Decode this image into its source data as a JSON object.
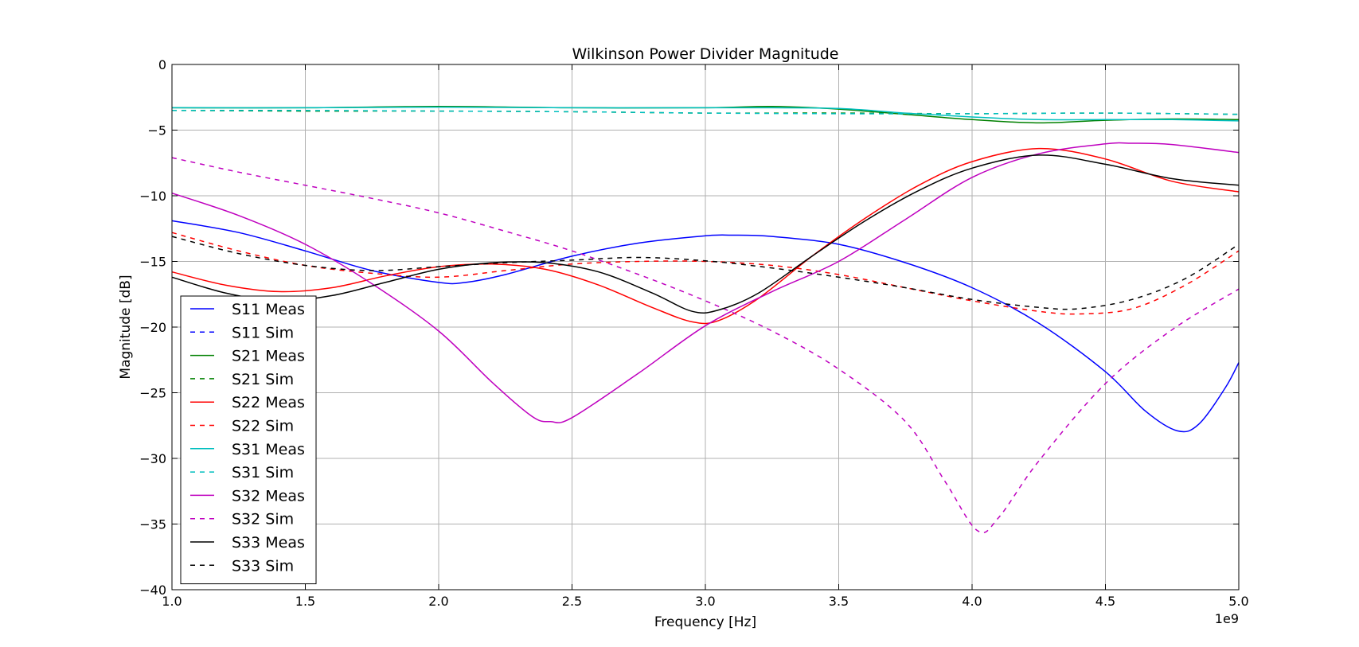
{
  "chart_data": {
    "type": "line",
    "title": "Wilkinson Power Divider Magnitude",
    "xlabel": "Frequency [Hz]",
    "ylabel": "Magnitude [dB]",
    "x_multiplier_label": "1e9",
    "xlim": [
      1.0,
      5.0
    ],
    "ylim": [
      -40,
      0
    ],
    "x_ticks": [
      1.0,
      1.5,
      2.0,
      2.5,
      3.0,
      3.5,
      4.0,
      4.5,
      5.0
    ],
    "x_tick_labels": [
      "1.0",
      "1.5",
      "2.0",
      "2.5",
      "3.0",
      "3.5",
      "4.0",
      "4.5",
      "5.0"
    ],
    "y_ticks": [
      0,
      -5,
      -10,
      -15,
      -20,
      -25,
      -30,
      -35,
      -40
    ],
    "y_tick_labels": [
      "0",
      "−5",
      "−10",
      "−15",
      "−20",
      "−25",
      "−30",
      "−35",
      "−40"
    ],
    "grid": true,
    "legend_position": "lower-left",
    "x_units_note": "x values are in units of 1e9 Hz (GHz), as shown by the axis offset label",
    "series": [
      {
        "name": "S11 Meas",
        "color": "#0000ff",
        "style": "solid",
        "points": [
          [
            1.0,
            -11.9
          ],
          [
            1.25,
            -12.8
          ],
          [
            1.5,
            -14.2
          ],
          [
            1.75,
            -15.7
          ],
          [
            2.0,
            -16.6
          ],
          [
            2.1,
            -16.6
          ],
          [
            2.25,
            -16.0
          ],
          [
            2.5,
            -14.6
          ],
          [
            2.75,
            -13.6
          ],
          [
            3.0,
            -13.05
          ],
          [
            3.1,
            -13.0
          ],
          [
            3.25,
            -13.1
          ],
          [
            3.5,
            -13.7
          ],
          [
            3.75,
            -15.1
          ],
          [
            4.0,
            -17.0
          ],
          [
            4.25,
            -19.7
          ],
          [
            4.5,
            -23.4
          ],
          [
            4.65,
            -26.4
          ],
          [
            4.77,
            -27.9
          ],
          [
            4.85,
            -27.4
          ],
          [
            4.95,
            -24.6
          ],
          [
            5.0,
            -22.7
          ]
        ]
      },
      {
        "name": "S11 Sim",
        "color": "#0000ff",
        "style": "dashed",
        "points": []
      },
      {
        "name": "S21 Meas",
        "color": "#008000",
        "style": "solid",
        "points": [
          [
            1.0,
            -3.3
          ],
          [
            1.5,
            -3.3
          ],
          [
            2.0,
            -3.2
          ],
          [
            2.5,
            -3.3
          ],
          [
            3.0,
            -3.3
          ],
          [
            3.25,
            -3.2
          ],
          [
            3.5,
            -3.4
          ],
          [
            3.75,
            -3.8
          ],
          [
            4.0,
            -4.2
          ],
          [
            4.25,
            -4.45
          ],
          [
            4.5,
            -4.25
          ],
          [
            4.75,
            -4.15
          ],
          [
            5.0,
            -4.2
          ]
        ]
      },
      {
        "name": "S21 Sim",
        "color": "#008000",
        "style": "dashed",
        "points": [
          [
            1.0,
            -3.5
          ],
          [
            1.5,
            -3.55
          ],
          [
            2.0,
            -3.55
          ],
          [
            2.5,
            -3.6
          ],
          [
            3.0,
            -3.7
          ],
          [
            3.5,
            -3.7
          ],
          [
            4.0,
            -3.75
          ],
          [
            4.5,
            -3.7
          ],
          [
            5.0,
            -3.8
          ]
        ]
      },
      {
        "name": "S22 Meas",
        "color": "#ff0000",
        "style": "solid",
        "points": [
          [
            1.0,
            -15.8
          ],
          [
            1.2,
            -16.8
          ],
          [
            1.4,
            -17.3
          ],
          [
            1.6,
            -17.0
          ],
          [
            1.8,
            -16.1
          ],
          [
            2.0,
            -15.4
          ],
          [
            2.2,
            -15.2
          ],
          [
            2.4,
            -15.6
          ],
          [
            2.6,
            -16.8
          ],
          [
            2.8,
            -18.5
          ],
          [
            2.95,
            -19.6
          ],
          [
            3.05,
            -19.5
          ],
          [
            3.2,
            -17.8
          ],
          [
            3.4,
            -14.6
          ],
          [
            3.6,
            -11.7
          ],
          [
            3.8,
            -9.2
          ],
          [
            4.0,
            -7.4
          ],
          [
            4.25,
            -6.4
          ],
          [
            4.5,
            -7.2
          ],
          [
            4.75,
            -8.9
          ],
          [
            5.0,
            -9.7
          ]
        ]
      },
      {
        "name": "S22 Sim",
        "color": "#ff0000",
        "style": "dashed",
        "points": [
          [
            1.0,
            -12.8
          ],
          [
            1.25,
            -14.2
          ],
          [
            1.5,
            -15.3
          ],
          [
            1.75,
            -15.9
          ],
          [
            2.0,
            -16.2
          ],
          [
            2.25,
            -15.7
          ],
          [
            2.5,
            -15.2
          ],
          [
            2.75,
            -15.0
          ],
          [
            3.0,
            -15.0
          ],
          [
            3.25,
            -15.3
          ],
          [
            3.5,
            -16.0
          ],
          [
            3.75,
            -17.0
          ],
          [
            4.0,
            -18.0
          ],
          [
            4.25,
            -18.8
          ],
          [
            4.4,
            -19.0
          ],
          [
            4.6,
            -18.6
          ],
          [
            4.8,
            -16.8
          ],
          [
            5.0,
            -14.2
          ]
        ]
      },
      {
        "name": "S31 Meas",
        "color": "#00bfbf",
        "style": "solid",
        "points": [
          [
            1.0,
            -3.3
          ],
          [
            1.5,
            -3.3
          ],
          [
            2.0,
            -3.25
          ],
          [
            2.5,
            -3.3
          ],
          [
            3.0,
            -3.3
          ],
          [
            3.25,
            -3.3
          ],
          [
            3.5,
            -3.35
          ],
          [
            3.75,
            -3.7
          ],
          [
            4.0,
            -4.0
          ],
          [
            4.25,
            -4.2
          ],
          [
            4.5,
            -4.2
          ],
          [
            4.75,
            -4.2
          ],
          [
            5.0,
            -4.3
          ]
        ]
      },
      {
        "name": "S31 Sim",
        "color": "#00bfbf",
        "style": "dashed",
        "points": [
          [
            1.0,
            -3.5
          ],
          [
            1.5,
            -3.5
          ],
          [
            2.0,
            -3.55
          ],
          [
            2.5,
            -3.6
          ],
          [
            3.0,
            -3.7
          ],
          [
            3.5,
            -3.75
          ],
          [
            4.0,
            -3.75
          ],
          [
            4.5,
            -3.7
          ],
          [
            5.0,
            -3.8
          ]
        ]
      },
      {
        "name": "S32 Meas",
        "color": "#bf00bf",
        "style": "solid",
        "points": [
          [
            1.0,
            -9.8
          ],
          [
            1.25,
            -11.5
          ],
          [
            1.5,
            -13.7
          ],
          [
            1.75,
            -16.7
          ],
          [
            2.0,
            -20.3
          ],
          [
            2.2,
            -24.2
          ],
          [
            2.35,
            -26.8
          ],
          [
            2.42,
            -27.2
          ],
          [
            2.5,
            -26.9
          ],
          [
            2.75,
            -23.5
          ],
          [
            3.0,
            -19.9
          ],
          [
            3.25,
            -17.3
          ],
          [
            3.5,
            -15.0
          ],
          [
            3.75,
            -11.8
          ],
          [
            4.0,
            -8.6
          ],
          [
            4.25,
            -6.8
          ],
          [
            4.5,
            -6.05
          ],
          [
            4.6,
            -6.0
          ],
          [
            4.75,
            -6.1
          ],
          [
            5.0,
            -6.7
          ]
        ]
      },
      {
        "name": "S32 Sim",
        "color": "#bf00bf",
        "style": "dashed",
        "points": [
          [
            1.0,
            -7.1
          ],
          [
            1.25,
            -8.2
          ],
          [
            1.5,
            -9.2
          ],
          [
            1.75,
            -10.2
          ],
          [
            2.0,
            -11.3
          ],
          [
            2.25,
            -12.7
          ],
          [
            2.5,
            -14.2
          ],
          [
            2.75,
            -16.0
          ],
          [
            3.0,
            -18.0
          ],
          [
            3.25,
            -20.3
          ],
          [
            3.5,
            -23.2
          ],
          [
            3.75,
            -27.2
          ],
          [
            3.9,
            -31.8
          ],
          [
            4.02,
            -35.5
          ],
          [
            4.1,
            -34.5
          ],
          [
            4.25,
            -30.2
          ],
          [
            4.5,
            -24.3
          ],
          [
            4.75,
            -20.2
          ],
          [
            5.0,
            -17.1
          ]
        ]
      },
      {
        "name": "S33 Meas",
        "color": "#000000",
        "style": "solid",
        "points": [
          [
            1.0,
            -16.2
          ],
          [
            1.2,
            -17.4
          ],
          [
            1.4,
            -18.0
          ],
          [
            1.6,
            -17.6
          ],
          [
            1.8,
            -16.6
          ],
          [
            2.0,
            -15.6
          ],
          [
            2.2,
            -15.1
          ],
          [
            2.4,
            -15.1
          ],
          [
            2.6,
            -15.8
          ],
          [
            2.8,
            -17.4
          ],
          [
            2.95,
            -18.8
          ],
          [
            3.05,
            -18.7
          ],
          [
            3.2,
            -17.4
          ],
          [
            3.4,
            -14.6
          ],
          [
            3.6,
            -11.9
          ],
          [
            3.8,
            -9.6
          ],
          [
            4.0,
            -7.9
          ],
          [
            4.25,
            -6.9
          ],
          [
            4.5,
            -7.6
          ],
          [
            4.75,
            -8.7
          ],
          [
            5.0,
            -9.2
          ]
        ]
      },
      {
        "name": "S33 Sim",
        "color": "#000000",
        "style": "dashed",
        "points": [
          [
            1.0,
            -13.1
          ],
          [
            1.25,
            -14.4
          ],
          [
            1.5,
            -15.3
          ],
          [
            1.75,
            -15.7
          ],
          [
            2.0,
            -15.4
          ],
          [
            2.25,
            -15.1
          ],
          [
            2.5,
            -14.9
          ],
          [
            2.75,
            -14.7
          ],
          [
            3.0,
            -14.95
          ],
          [
            3.25,
            -15.5
          ],
          [
            3.5,
            -16.2
          ],
          [
            3.75,
            -17.0
          ],
          [
            4.0,
            -17.9
          ],
          [
            4.25,
            -18.5
          ],
          [
            4.4,
            -18.6
          ],
          [
            4.6,
            -17.9
          ],
          [
            4.8,
            -16.3
          ],
          [
            5.0,
            -13.7
          ]
        ]
      }
    ]
  }
}
